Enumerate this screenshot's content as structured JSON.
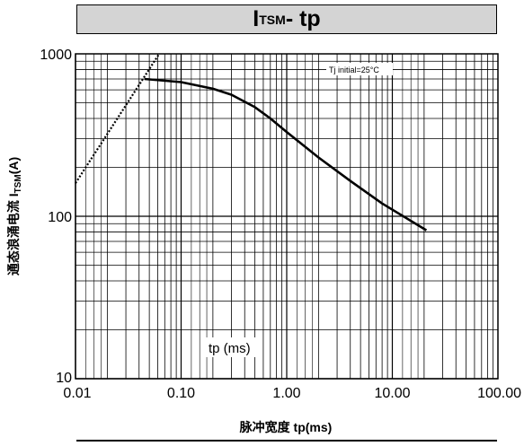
{
  "title": {
    "main": "I",
    "sub": "TSM",
    "suffix": " - tp"
  },
  "y_axis_label": {
    "prefix": "通态浪涌电流 I",
    "sub": "TSM",
    "suffix": "(A)"
  },
  "x_axis_label": "脉冲宽度 tp(ms)",
  "annotation_tj": "Tj initial=25°C",
  "annotation_tp": "tp (ms)",
  "chart_data": {
    "type": "line",
    "xscale": "log",
    "yscale": "log",
    "xlim": [
      0.01,
      100
    ],
    "ylim": [
      10,
      1000
    ],
    "x_tick_labels": [
      "0.01",
      "0.10",
      "1.00",
      "10.00",
      "100.00"
    ],
    "y_tick_labels": [
      "10",
      "100",
      "1000"
    ],
    "grid": true,
    "colors": {
      "line": "#000000",
      "grid": "#000000"
    },
    "series": [
      {
        "style": "solid",
        "points": [
          [
            0.045,
            700
          ],
          [
            0.1,
            670
          ],
          [
            0.2,
            610
          ],
          [
            0.3,
            560
          ],
          [
            0.5,
            470
          ],
          [
            0.7,
            400
          ],
          [
            1.0,
            330
          ],
          [
            2.0,
            230
          ],
          [
            4.0,
            165
          ],
          [
            8.0,
            120
          ],
          [
            21.0,
            82
          ]
        ]
      },
      {
        "style": "dotted",
        "points": [
          [
            0.01,
            160
          ],
          [
            0.062,
            1000
          ]
        ]
      }
    ]
  }
}
